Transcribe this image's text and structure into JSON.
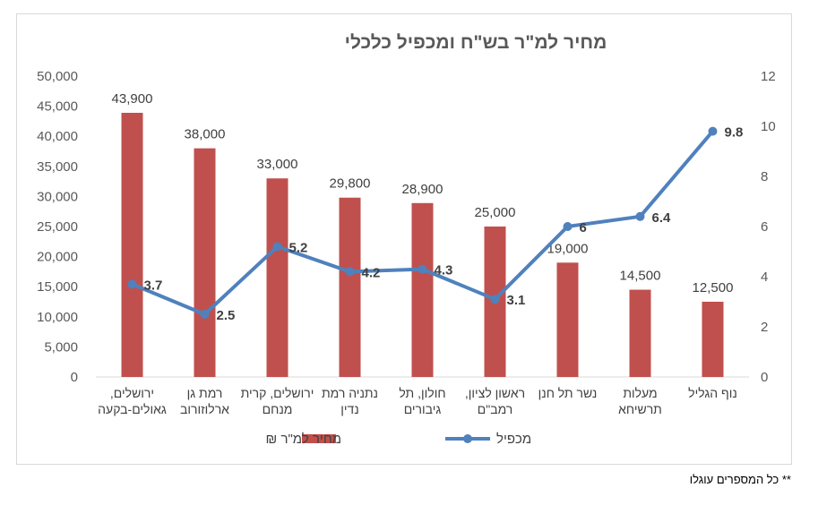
{
  "chart_data": {
    "type": "bar",
    "title": "מחיר למ\"ר בש\"ח ומכפיל כלכלי",
    "categories": [
      [
        "ירושלים,",
        "גאולים-בקעה"
      ],
      [
        "רמת גן",
        "ארלוזורוב"
      ],
      [
        "ירושלים, קרית",
        "מנחם"
      ],
      [
        "נתניה רמת",
        "נדין"
      ],
      [
        "חולון, תל",
        "גיבורים"
      ],
      [
        "ראשון לציון,",
        "רמב\"ם"
      ],
      [
        "נשר תל חנן"
      ],
      [
        "מעלות",
        "תרשיחא"
      ],
      [
        "נוף הגליל"
      ]
    ],
    "series": [
      {
        "name": "מחיר למ\"ר ₪",
        "kind": "bar",
        "axis": "left",
        "color": "#c0504d",
        "values": [
          43900,
          38000,
          33000,
          29800,
          28900,
          25000,
          19000,
          14500,
          12500
        ],
        "labels": [
          "43,900",
          "38,000",
          "33,000",
          "29,800",
          "28,900",
          "25,000",
          "19,000",
          "14,500",
          "12,500"
        ]
      },
      {
        "name": "מכפיל",
        "kind": "line",
        "axis": "right",
        "color": "#4f81bd",
        "values": [
          3.7,
          2.5,
          5.2,
          4.2,
          4.3,
          3.1,
          6,
          6.4,
          9.8
        ],
        "labels": [
          "3.7",
          "2.5",
          "5.2",
          "4.2",
          "4.3",
          "3.1",
          "6",
          "6.4",
          "9.8"
        ]
      }
    ],
    "y_left": {
      "ylim": [
        0,
        50000
      ],
      "ticks": [
        "0",
        "5,000",
        "10,000",
        "15,000",
        "20,000",
        "25,000",
        "30,000",
        "35,000",
        "40,000",
        "45,000",
        "50,000"
      ]
    },
    "y_right": {
      "ylim": [
        0,
        12
      ],
      "ticks": [
        "0",
        "2",
        "4",
        "6",
        "8",
        "10",
        "12"
      ]
    },
    "grid": false,
    "legend": "bottom"
  },
  "footnote": "** כל המספרים עוגלו"
}
